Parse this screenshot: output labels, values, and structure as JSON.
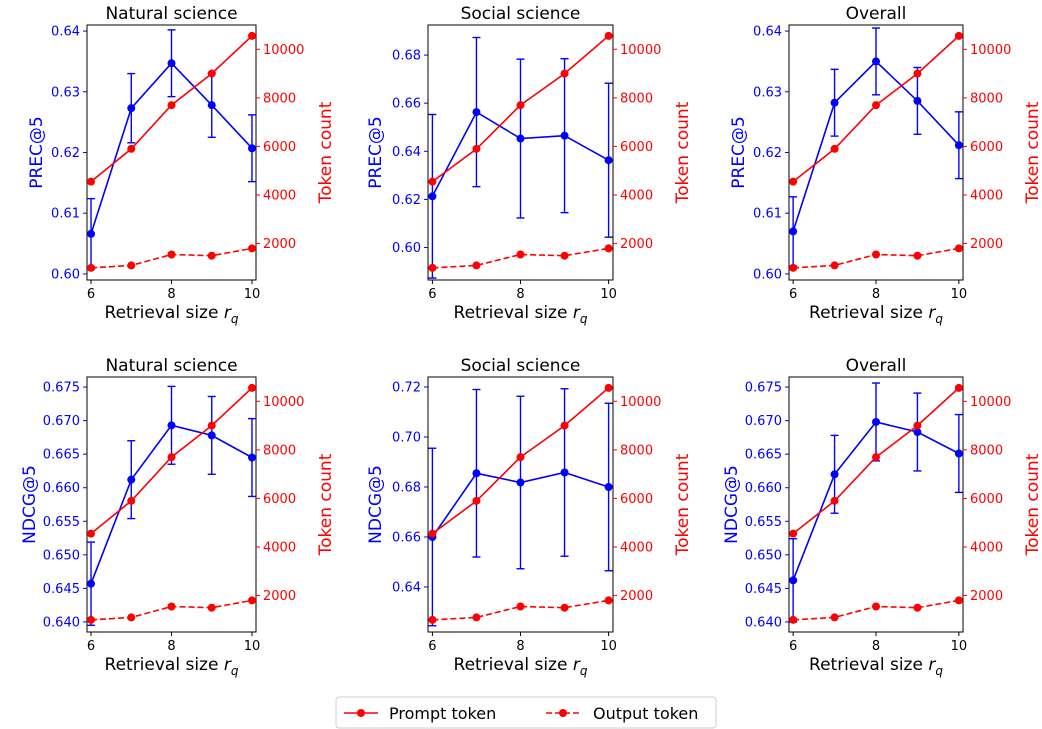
{
  "legend": {
    "prompt_label": "Prompt token",
    "output_label": "Output token",
    "placement": "bottom-center"
  },
  "colors": {
    "prec": "#0000ff",
    "token": "#ff0000"
  },
  "chart_data": [
    {
      "type": "line",
      "title": "Natural science",
      "xlabel": "Retrieval size r_q",
      "ylabel_left": "PREC@5",
      "ylabel_right": "Token count",
      "x": [
        6,
        7,
        8,
        9,
        10
      ],
      "xlim": [
        5.9,
        10.1
      ],
      "ylim_left": [
        0.599,
        0.641
      ],
      "ylim_right": [
        500,
        11000
      ],
      "left_ticks": [
        "0.60",
        "0.61",
        "0.62",
        "0.63",
        "0.64"
      ],
      "right_ticks": [
        "2000",
        "4000",
        "6000",
        "8000",
        "10000"
      ],
      "series": [
        {
          "name": "",
          "axis": "left",
          "values": [
            0.6066,
            0.6273,
            0.6347,
            0.6278,
            0.6207
          ],
          "err": [
            0.0058,
            0.0057,
            0.0055,
            0.0053,
            0.0055
          ]
        },
        {
          "name": "Prompt token",
          "axis": "right",
          "values": [
            4550,
            5900,
            7700,
            9000,
            10550
          ]
        },
        {
          "name": "Output token",
          "axis": "right",
          "values": [
            1000,
            1100,
            1550,
            1500,
            1800
          ]
        }
      ]
    },
    {
      "type": "line",
      "title": "Social science",
      "xlabel": "Retrieval size r_q",
      "ylabel_left": "PREC@5",
      "ylabel_right": "Token count",
      "x": [
        6,
        7,
        8,
        9,
        10
      ],
      "xlim": [
        5.9,
        10.1
      ],
      "ylim_left": [
        0.5865,
        0.6925
      ],
      "ylim_right": [
        500,
        11000
      ],
      "left_ticks": [
        "0.60",
        "0.62",
        "0.64",
        "0.66",
        "0.68"
      ],
      "right_ticks": [
        "2000",
        "4000",
        "6000",
        "8000",
        "10000"
      ],
      "series": [
        {
          "name": "",
          "axis": "left",
          "values": [
            0.6213,
            0.6563,
            0.6453,
            0.6465,
            0.6363
          ],
          "err": [
            0.034,
            0.031,
            0.033,
            0.032,
            0.032
          ]
        },
        {
          "name": "Prompt token",
          "axis": "right",
          "values": [
            4550,
            5900,
            7700,
            9000,
            10550
          ]
        },
        {
          "name": "Output token",
          "axis": "right",
          "values": [
            1000,
            1100,
            1550,
            1500,
            1800
          ]
        }
      ]
    },
    {
      "type": "line",
      "title": "Overall",
      "xlabel": "Retrieval size r_q",
      "ylabel_left": "PREC@5",
      "ylabel_right": "Token count",
      "x": [
        6,
        7,
        8,
        9,
        10
      ],
      "xlim": [
        5.9,
        10.1
      ],
      "ylim_left": [
        0.599,
        0.641
      ],
      "ylim_right": [
        500,
        11000
      ],
      "left_ticks": [
        "0.60",
        "0.61",
        "0.62",
        "0.63",
        "0.64"
      ],
      "right_ticks": [
        "2000",
        "4000",
        "6000",
        "8000",
        "10000"
      ],
      "series": [
        {
          "name": "",
          "axis": "left",
          "values": [
            0.607,
            0.6282,
            0.635,
            0.6285,
            0.6212
          ],
          "err": [
            0.0057,
            0.0055,
            0.0055,
            0.0055,
            0.0055
          ]
        },
        {
          "name": "Prompt token",
          "axis": "right",
          "values": [
            4550,
            5900,
            7700,
            9000,
            10550
          ]
        },
        {
          "name": "Output token",
          "axis": "right",
          "values": [
            1000,
            1100,
            1550,
            1500,
            1800
          ]
        }
      ]
    },
    {
      "type": "line",
      "title": "Natural science",
      "xlabel": "Retrieval size r_q",
      "ylabel_left": "NDCG@5",
      "ylabel_right": "Token count",
      "x": [
        6,
        7,
        8,
        9,
        10
      ],
      "xlim": [
        5.9,
        10.1
      ],
      "ylim_left": [
        0.6385,
        0.6765
      ],
      "ylim_right": [
        500,
        11000
      ],
      "left_ticks": [
        "0.640",
        "0.645",
        "0.650",
        "0.655",
        "0.660",
        "0.665",
        "0.670",
        "0.675"
      ],
      "right_ticks": [
        "2000",
        "4000",
        "6000",
        "8000",
        "10000"
      ],
      "series": [
        {
          "name": "",
          "axis": "left",
          "values": [
            0.6457,
            0.6612,
            0.6693,
            0.6678,
            0.6645
          ],
          "err": [
            0.0062,
            0.0058,
            0.0058,
            0.0058,
            0.0058
          ]
        },
        {
          "name": "Prompt token",
          "axis": "right",
          "values": [
            4550,
            5900,
            7700,
            9000,
            10550
          ]
        },
        {
          "name": "Output token",
          "axis": "right",
          "values": [
            1000,
            1100,
            1550,
            1500,
            1800
          ]
        }
      ]
    },
    {
      "type": "line",
      "title": "Social science",
      "xlabel": "Retrieval size r_q",
      "ylabel_left": "NDCG@5",
      "ylabel_right": "Token count",
      "x": [
        6,
        7,
        8,
        9,
        10
      ],
      "xlim": [
        5.9,
        10.1
      ],
      "ylim_left": [
        0.622,
        0.724
      ],
      "ylim_right": [
        500,
        11000
      ],
      "left_ticks": [
        "0.64",
        "0.66",
        "0.68",
        "0.70",
        "0.72"
      ],
      "right_ticks": [
        "2000",
        "4000",
        "6000",
        "8000",
        "10000"
      ],
      "series": [
        {
          "name": "",
          "axis": "left",
          "values": [
            0.66,
            0.6855,
            0.6818,
            0.6858,
            0.68
          ],
          "err": [
            0.0355,
            0.0335,
            0.0345,
            0.0335,
            0.0335
          ]
        },
        {
          "name": "Prompt token",
          "axis": "right",
          "values": [
            4550,
            5900,
            7700,
            9000,
            10550
          ]
        },
        {
          "name": "Output token",
          "axis": "right",
          "values": [
            1000,
            1100,
            1550,
            1500,
            1800
          ]
        }
      ]
    },
    {
      "type": "line",
      "title": "Overall",
      "xlabel": "Retrieval size r_q",
      "ylabel_left": "NDCG@5",
      "ylabel_right": "Token count",
      "x": [
        6,
        7,
        8,
        9,
        10
      ],
      "xlim": [
        5.9,
        10.1
      ],
      "ylim_left": [
        0.6385,
        0.6765
      ],
      "ylim_right": [
        500,
        11000
      ],
      "left_ticks": [
        "0.640",
        "0.645",
        "0.650",
        "0.655",
        "0.660",
        "0.665",
        "0.670",
        "0.675"
      ],
      "right_ticks": [
        "2000",
        "4000",
        "6000",
        "8000",
        "10000"
      ],
      "series": [
        {
          "name": "",
          "axis": "left",
          "values": [
            0.6462,
            0.662,
            0.6698,
            0.6683,
            0.6651
          ],
          "err": [
            0.0062,
            0.0058,
            0.0058,
            0.0058,
            0.0058
          ]
        },
        {
          "name": "Prompt token",
          "axis": "right",
          "values": [
            4550,
            5900,
            7700,
            9000,
            10550
          ]
        },
        {
          "name": "Output token",
          "axis": "right",
          "values": [
            1000,
            1100,
            1550,
            1500,
            1800
          ]
        }
      ]
    }
  ]
}
